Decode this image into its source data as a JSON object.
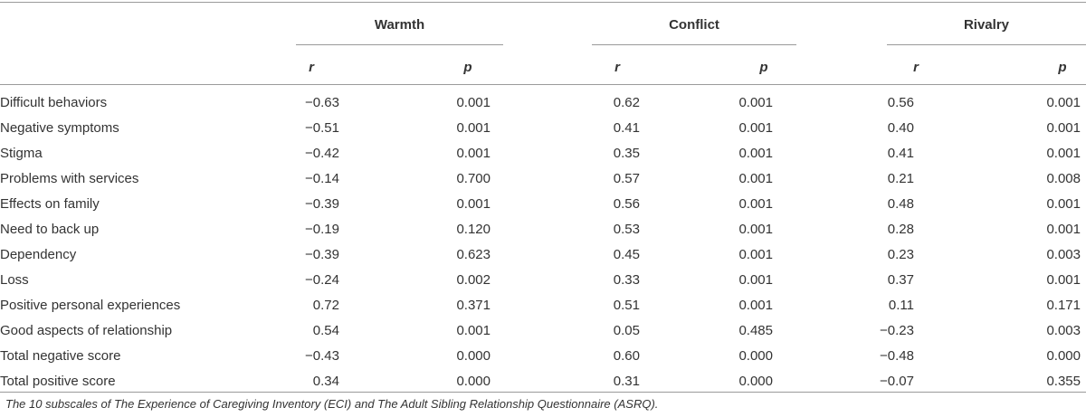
{
  "table": {
    "groups": [
      "Warmth",
      "Conflict",
      "Rivalry"
    ],
    "subheaders": [
      "r",
      "p",
      "r",
      "p",
      "r",
      "p"
    ],
    "rows": [
      {
        "label": "Difficult behaviors",
        "values": [
          "−0.63",
          "0.001",
          "0.62",
          "0.001",
          "0.56",
          "0.001"
        ]
      },
      {
        "label": "Negative symptoms",
        "values": [
          "−0.51",
          "0.001",
          "0.41",
          "0.001",
          "0.40",
          "0.001"
        ]
      },
      {
        "label": "Stigma",
        "values": [
          "−0.42",
          "0.001",
          "0.35",
          "0.001",
          "0.41",
          "0.001"
        ]
      },
      {
        "label": "Problems with services",
        "values": [
          "−0.14",
          "0.700",
          "0.57",
          "0.001",
          "0.21",
          "0.008"
        ]
      },
      {
        "label": "Effects on family",
        "values": [
          "−0.39",
          "0.001",
          "0.56",
          "0.001",
          "0.48",
          "0.001"
        ]
      },
      {
        "label": "Need to back up",
        "values": [
          "−0.19",
          "0.120",
          "0.53",
          "0.001",
          "0.28",
          "0.001"
        ]
      },
      {
        "label": "Dependency",
        "values": [
          "−0.39",
          "0.623",
          "0.45",
          "0.001",
          "0.23",
          "0.003"
        ]
      },
      {
        "label": "Loss",
        "values": [
          "−0.24",
          "0.002",
          "0.33",
          "0.001",
          "0.37",
          "0.001"
        ]
      },
      {
        "label": "Positive personal experiences",
        "values": [
          "0.72",
          "0.371",
          "0.51",
          "0.001",
          "0.11",
          "0.171"
        ]
      },
      {
        "label": "Good aspects of relationship",
        "values": [
          "0.54",
          "0.001",
          "0.05",
          "0.485",
          "−0.23",
          "0.003"
        ]
      },
      {
        "label": "Total negative score",
        "values": [
          "−0.43",
          "0.000",
          "0.60",
          "0.000",
          "−0.48",
          "0.000"
        ]
      },
      {
        "label": "Total positive score",
        "values": [
          "0.34",
          "0.000",
          "0.31",
          "0.000",
          "−0.07",
          "0.355"
        ]
      }
    ]
  },
  "caption": "The 10 subscales of The Experience of Caregiving Inventory (ECI) and The Adult Sibling Relationship Questionnaire (ASRQ)."
}
